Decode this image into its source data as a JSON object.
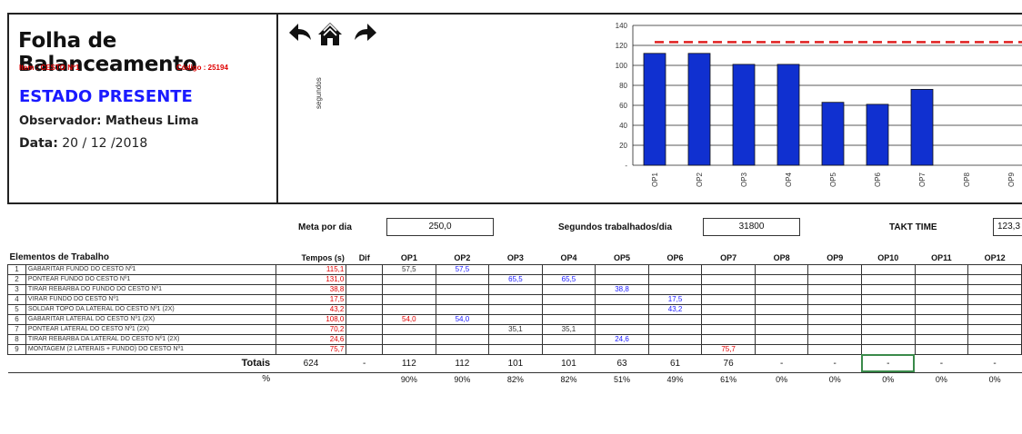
{
  "header": {
    "title": "Folha de Balanceamento",
    "item": "Item : CESTO Nº1",
    "codigo": "Código : 25194",
    "estado": "ESTADO PRESENTE",
    "observador_label": "Observador:",
    "observador": "Matheus Lima",
    "data_label": "Data:",
    "data": "20 / 12 /2018"
  },
  "nav_icons": [
    "back-arrow-icon",
    "home-icon",
    "forward-arrow-icon"
  ],
  "chart_ylabel": "segundos",
  "chart_data": {
    "type": "bar",
    "categories": [
      "OP1",
      "OP2",
      "OP3",
      "OP4",
      "OP5",
      "OP6",
      "OP7",
      "OP8",
      "OP9"
    ],
    "values": [
      112,
      112,
      101,
      101,
      63,
      61,
      76,
      0,
      0
    ],
    "ylim": [
      0,
      140
    ],
    "yticks": [
      "-",
      "20",
      "40",
      "60",
      "80",
      "100",
      "120",
      "140"
    ],
    "takt_line": 123.3,
    "bar_color": "#1030d0",
    "takt_color": "#e02020",
    "grid": true
  },
  "meta": {
    "meta_por_dia_label": "Meta por dia",
    "meta_por_dia": "250,0",
    "segundos_label": "Segundos trabalhados/dia",
    "segundos": "31800",
    "takt_label": "TAKT TIME",
    "takt": "123,3"
  },
  "table": {
    "headers": {
      "elementos": "Elementos de Trabalho",
      "tempos": "Tempos (s)",
      "dif": "Dif",
      "ops": [
        "OP1",
        "OP2",
        "OP3",
        "OP4",
        "OP5",
        "OP6",
        "OP7",
        "OP8",
        "OP9",
        "OP10",
        "OP11",
        "OP12"
      ]
    },
    "rows": [
      {
        "num": "1",
        "name": "GABARITAR FUNDO DO CESTO Nº1",
        "tempo": "115,1",
        "ops": [
          "57,5",
          "57,5",
          "",
          "",
          "",
          "",
          "",
          "",
          "",
          "",
          "",
          ""
        ],
        "op_colors": [
          "black",
          "blue",
          "",
          "",
          "",
          "",
          "",
          "",
          "",
          "",
          "",
          ""
        ]
      },
      {
        "num": "2",
        "name": "PONTEAR FUNDO DO CESTO Nº1",
        "tempo": "131,0",
        "ops": [
          "",
          "",
          "65,5",
          "65,5",
          "",
          "",
          "",
          "",
          "",
          "",
          "",
          ""
        ],
        "op_colors": [
          "",
          "",
          "blue",
          "blue",
          "",
          "",
          "",
          "",
          "",
          "",
          "",
          ""
        ]
      },
      {
        "num": "3",
        "name": "TIRAR REBARBA DO FUNDO DO CESTO Nº1",
        "tempo": "38,8",
        "ops": [
          "",
          "",
          "",
          "",
          "38,8",
          "",
          "",
          "",
          "",
          "",
          "",
          ""
        ],
        "op_colors": [
          "",
          "",
          "",
          "",
          "blue",
          "",
          "",
          "",
          "",
          "",
          "",
          ""
        ]
      },
      {
        "num": "4",
        "name": "VIRAR FUNDO DO CESTO Nº1",
        "tempo": "17,5",
        "ops": [
          "",
          "",
          "",
          "",
          "",
          "17,5",
          "",
          "",
          "",
          "",
          "",
          ""
        ],
        "op_colors": [
          "",
          "",
          "",
          "",
          "",
          "blue",
          "",
          "",
          "",
          "",
          "",
          ""
        ]
      },
      {
        "num": "5",
        "name": "SOLDAR TOPO DA LATERAL DO CESTO Nº1 (2x)",
        "tempo": "43,2",
        "ops": [
          "",
          "",
          "",
          "",
          "",
          "43,2",
          "",
          "",
          "",
          "",
          "",
          ""
        ],
        "op_colors": [
          "",
          "",
          "",
          "",
          "",
          "blue",
          "",
          "",
          "",
          "",
          "",
          ""
        ]
      },
      {
        "num": "6",
        "name": "GABARITAR LATERAL DO CESTO Nº1 (2x)",
        "tempo": "108,0",
        "ops": [
          "54,0",
          "54,0",
          "",
          "",
          "",
          "",
          "",
          "",
          "",
          "",
          "",
          ""
        ],
        "op_colors": [
          "red",
          "blue",
          "",
          "",
          "",
          "",
          "",
          "",
          "",
          "",
          "",
          ""
        ]
      },
      {
        "num": "7",
        "name": "PONTEAR LATERAL DO CESTO Nº1 (2x)",
        "tempo": "70,2",
        "ops": [
          "",
          "",
          "35,1",
          "35,1",
          "",
          "",
          "",
          "",
          "",
          "",
          "",
          ""
        ],
        "op_colors": [
          "",
          "",
          "black",
          "black",
          "",
          "",
          "",
          "",
          "",
          "",
          "",
          ""
        ]
      },
      {
        "num": "8",
        "name": "TIRAR REBARBA DA LATERAL DO CESTO Nº1 (2x)",
        "tempo": "24,6",
        "ops": [
          "",
          "",
          "",
          "",
          "24,6",
          "",
          "",
          "",
          "",
          "",
          "",
          ""
        ],
        "op_colors": [
          "",
          "",
          "",
          "",
          "blue",
          "",
          "",
          "",
          "",
          "",
          "",
          ""
        ]
      },
      {
        "num": "9",
        "name": "MONTAGEM (2 LATERAIS + FUNDO) DO CESTO Nº1",
        "tempo": "75,7",
        "ops": [
          "",
          "",
          "",
          "",
          "",
          "",
          "75,7",
          "",
          "",
          "",
          "",
          ""
        ],
        "op_colors": [
          "",
          "",
          "",
          "",
          "",
          "",
          "red",
          "",
          "",
          "",
          "",
          ""
        ]
      }
    ],
    "totals": {
      "label": "Totais",
      "tempo": "624",
      "dif": "-",
      "ops": [
        "112",
        "112",
        "101",
        "101",
        "63",
        "61",
        "76",
        "-",
        "-",
        "-",
        "-",
        "-"
      ]
    },
    "pct": {
      "label": "%",
      "ops": [
        "90%",
        "90%",
        "82%",
        "82%",
        "51%",
        "49%",
        "61%",
        "0%",
        "0%",
        "0%",
        "0%",
        "0%"
      ]
    }
  }
}
